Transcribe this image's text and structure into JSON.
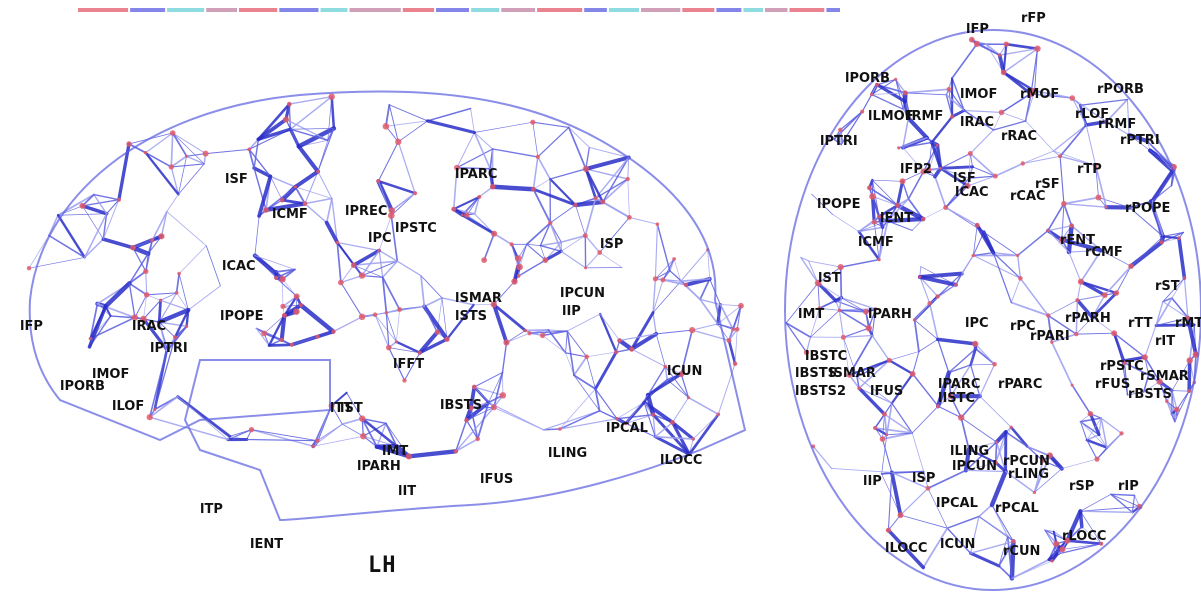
{
  "colors": {
    "edge": "#5a5ee0",
    "edge_dark": "#2a2ec8",
    "edge_light": "#9c9ef0",
    "node": "#e05a6a",
    "header_stripe": [
      "#e05a6a",
      "#5a5ee0",
      "#6ad0d6",
      "#c080a0"
    ]
  },
  "hemisphere_label": "LH",
  "views": [
    {
      "name": "sagittal",
      "labels": [
        "lFP",
        "lRAC",
        "lPTRI",
        "lPORB",
        "lMOF",
        "lLOF",
        "lSF",
        "lCMF",
        "lCAC",
        "lPOPE",
        "lPREC",
        "lPC",
        "lPSTC",
        "lPARC",
        "lSP",
        "lSMAR",
        "lSTS",
        "lIP",
        "lPCUN",
        "lCUN",
        "lFFT",
        "lST",
        "lTT",
        "lBSTS",
        "lMT",
        "lPARH",
        "lIT",
        "lFUS",
        "lLING",
        "lPCAL",
        "lLOCC",
        "lTP",
        "lENT"
      ]
    },
    {
      "name": "axial",
      "labels": [
        "lFP",
        "rFP",
        "lPORB",
        "rPORB",
        "lLMOF",
        "lMOF",
        "rMOF",
        "lRMF",
        "rLOF",
        "rRMF",
        "lPTRI",
        "rPTRI",
        "lRAC",
        "rRAC",
        "lFP2",
        "rTP",
        "lSF",
        "lCAC",
        "rCAC",
        "rSF",
        "lPOPE",
        "rPOPE",
        "lENT",
        "rENT",
        "lCMF",
        "rCMF",
        "lST",
        "rST",
        "lMT",
        "lPARH",
        "lPC",
        "rPC",
        "rPARH",
        "rPARI",
        "rTT",
        "rMT",
        "lBSTC",
        "rIT",
        "lBSTS",
        "lBSTS2",
        "lSMAR",
        "rPSTC",
        "rFUS",
        "rSMAR",
        "rBSTS",
        "lFUS",
        "lPARC",
        "lISTC",
        "rPARC",
        "lLING",
        "lPCUN",
        "rPCUN",
        "rLING",
        "lIP",
        "lSP",
        "rSP",
        "rIP",
        "lPCAL",
        "rPCAL",
        "lLOCC",
        "lCUN",
        "rCUN",
        "rLOCC"
      ]
    }
  ]
}
